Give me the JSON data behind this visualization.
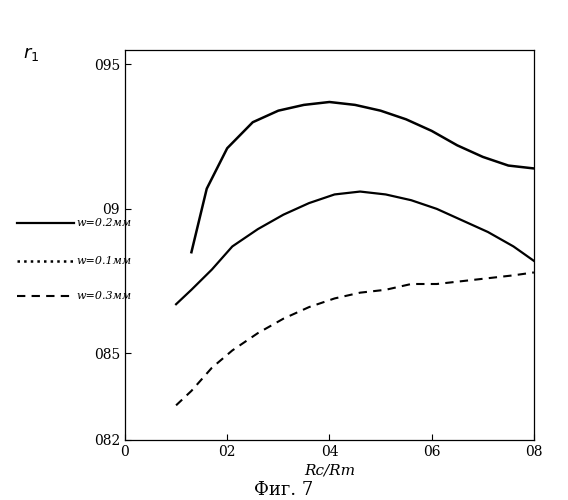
{
  "title_y": "r₁",
  "xlabel": "Rc/Rm",
  "caption": "Фиг. 7",
  "xlim": [
    0,
    0.8
  ],
  "ylim": [
    0.82,
    0.955
  ],
  "yticks": [
    0.82,
    0.85,
    0.9,
    0.95
  ],
  "xticks": [
    0,
    0.2,
    0.4,
    0.6,
    0.8
  ],
  "xtick_labels": [
    "0",
    "02",
    "04",
    "06",
    "08"
  ],
  "ytick_labels": [
    "082",
    "085",
    "09",
    "095"
  ],
  "curve_solid": {
    "label": "w=0.2мм",
    "x": [
      0.1,
      0.13,
      0.17,
      0.21,
      0.26,
      0.31,
      0.36,
      0.41,
      0.46,
      0.51,
      0.56,
      0.61,
      0.66,
      0.71,
      0.76,
      0.8
    ],
    "y": [
      0.867,
      0.872,
      0.879,
      0.887,
      0.893,
      0.898,
      0.902,
      0.905,
      0.906,
      0.905,
      0.903,
      0.9,
      0.896,
      0.892,
      0.887,
      0.882
    ]
  },
  "curve_dotted": {
    "label": "w=0.1мм",
    "x": [
      0.13,
      0.16,
      0.2,
      0.25,
      0.3,
      0.35,
      0.4,
      0.45,
      0.5,
      0.55,
      0.6,
      0.65,
      0.7,
      0.75,
      0.8
    ],
    "y": [
      0.885,
      0.907,
      0.921,
      0.93,
      0.934,
      0.936,
      0.937,
      0.936,
      0.934,
      0.931,
      0.927,
      0.922,
      0.918,
      0.915,
      0.914
    ]
  },
  "curve_dashed": {
    "label": "w=0.3мм",
    "x": [
      0.1,
      0.13,
      0.17,
      0.21,
      0.26,
      0.31,
      0.36,
      0.41,
      0.46,
      0.51,
      0.56,
      0.61,
      0.66,
      0.71,
      0.76,
      0.8
    ],
    "y": [
      0.832,
      0.837,
      0.845,
      0.851,
      0.857,
      0.862,
      0.866,
      0.869,
      0.871,
      0.872,
      0.874,
      0.874,
      0.875,
      0.876,
      0.877,
      0.878
    ]
  }
}
